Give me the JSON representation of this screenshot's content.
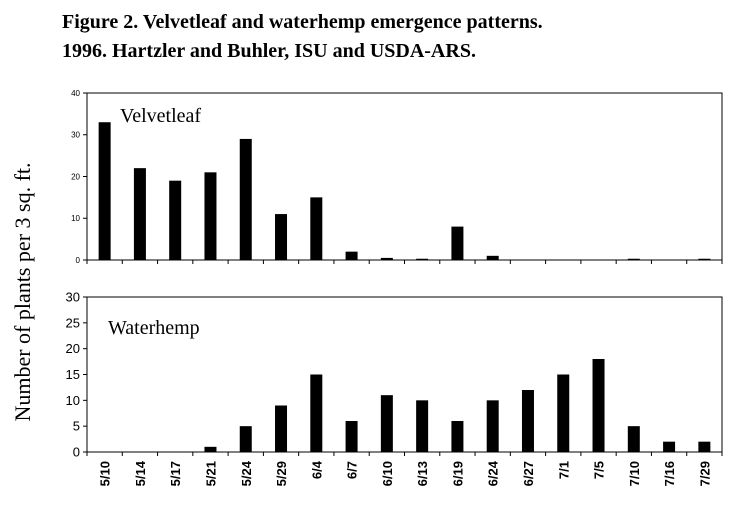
{
  "title_line1": "Figure 2.  Velvetleaf and waterhemp emergence patterns.",
  "title_line2": "1996.  Hartzler and Buhler, ISU and USDA-ARS.",
  "chart_data": {
    "type": "bar",
    "ylabel": "Number of plants per 3 sq. ft.",
    "categories": [
      "5/10",
      "5/14",
      "5/17",
      "5/21",
      "5/24",
      "5/29",
      "6/4",
      "6/7",
      "6/10",
      "6/13",
      "6/19",
      "6/24",
      "6/27",
      "7/1",
      "7/5",
      "7/10",
      "7/16",
      "7/29"
    ],
    "panels": [
      {
        "series_name": "Velvetleaf",
        "ylim": [
          0,
          40
        ],
        "yticks": [
          0,
          10,
          20,
          30,
          40
        ],
        "values": [
          33,
          22,
          19,
          21,
          29,
          11,
          15,
          2,
          0.5,
          0.3,
          8,
          1,
          0,
          0,
          0,
          0.3,
          0,
          0.3
        ]
      },
      {
        "series_name": "Waterhemp",
        "ylim": [
          0,
          30
        ],
        "yticks": [
          0,
          5,
          10,
          15,
          20,
          25,
          30
        ],
        "values": [
          0,
          0,
          0,
          1,
          5,
          9,
          15,
          6,
          11,
          10,
          6,
          10,
          12,
          15,
          18,
          5,
          2,
          2
        ]
      }
    ],
    "bar_color": "#000000",
    "grid": false,
    "legend": "none"
  }
}
